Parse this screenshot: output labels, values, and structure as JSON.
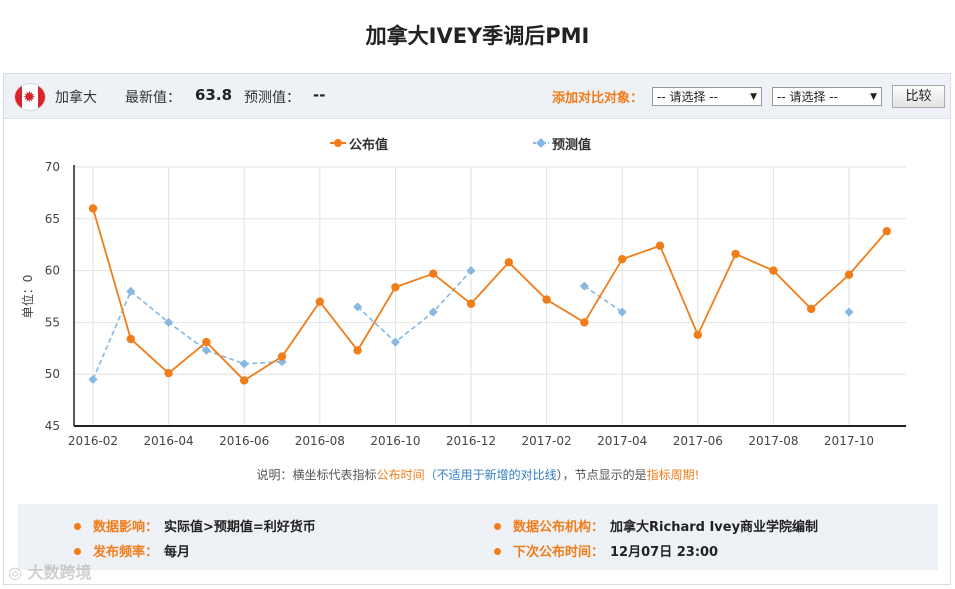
{
  "page": {
    "title": "加拿大IVEY季调后PMI"
  },
  "header": {
    "country": "加拿大",
    "flag_icon": "canada-flag-icon",
    "latest_label": "最新值：",
    "latest_value": "63.8",
    "forecast_label": "预测值：",
    "forecast_value": "--",
    "compare_label": "添加对比对象：",
    "select1_value": "-- 请选择 --",
    "select2_value": "-- 请选择 --",
    "compare_button": "比较"
  },
  "legend": {
    "published": "公布值",
    "forecast": "预测值"
  },
  "colors": {
    "published": "#f07d1a",
    "forecast": "#88b7e0",
    "accent": "#f07d1a"
  },
  "note": {
    "prefix": "说明：横坐标代表指标",
    "orange1": "公布时间",
    "paren_open": "（",
    "blue": "不适用于新增的对比线",
    "paren_close": "），节点显示的是",
    "orange2": "指标周期",
    "suffix": "!"
  },
  "info": {
    "impact_label": "数据影响：",
    "impact_value": "实际值>预期值=利好货币",
    "freq_label": "发布频率：",
    "freq_value": "每月",
    "org_label": "数据公布机构：",
    "org_value": "加拿大Richard Ivey商业学院编制",
    "next_label": "下次公布时间：",
    "next_value": "12月07日 23:00"
  },
  "watermark": "大数跨境",
  "chart_data": {
    "type": "line",
    "ylabel": "单位：0",
    "ylim": [
      45,
      70
    ],
    "yticks": [
      45,
      50,
      55,
      60,
      65,
      70
    ],
    "xticks": [
      "2016-02",
      "2016-04",
      "2016-06",
      "2016-08",
      "2016-10",
      "2016-12",
      "2017-02",
      "2017-04",
      "2017-06",
      "2017-08",
      "2017-10"
    ],
    "x": [
      "2016-02",
      "2016-03",
      "2016-04",
      "2016-05",
      "2016-06",
      "2016-07",
      "2016-08",
      "2016-09",
      "2016-10",
      "2016-11",
      "2016-12",
      "2017-01",
      "2017-02",
      "2017-03",
      "2017-04",
      "2017-05",
      "2017-06",
      "2017-07",
      "2017-08",
      "2017-09",
      "2017-10",
      "2017-11"
    ],
    "grid": true,
    "legend_position": "top-center",
    "series": [
      {
        "name": "公布值",
        "style": "solid",
        "values": [
          66.0,
          53.4,
          50.1,
          53.1,
          49.4,
          51.7,
          57.0,
          52.3,
          58.4,
          59.7,
          56.8,
          60.8,
          57.2,
          55.0,
          61.1,
          62.4,
          53.8,
          61.6,
          60.0,
          56.3,
          59.6,
          63.8
        ]
      },
      {
        "name": "预测值",
        "style": "dashed",
        "values": [
          49.5,
          58.0,
          55.0,
          52.3,
          51.0,
          51.2,
          null,
          56.5,
          53.1,
          56.0,
          60.0,
          null,
          null,
          58.5,
          56.0,
          null,
          null,
          null,
          null,
          null,
          56.0,
          null
        ]
      }
    ]
  }
}
